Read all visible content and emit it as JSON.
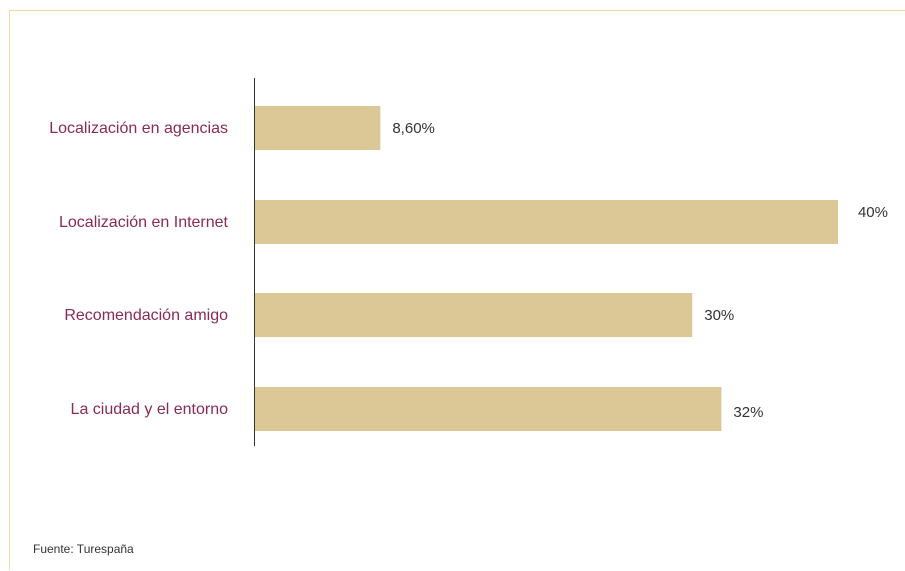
{
  "chart_data": {
    "type": "bar",
    "orientation": "horizontal",
    "categories": [
      "Localización en agencias",
      "Localización en Internet",
      "Recomendación amigo",
      "La ciudad y el entorno"
    ],
    "values": [
      8.6,
      40,
      30,
      32
    ],
    "value_labels": [
      "8,60%",
      "40%",
      "30%",
      "32%"
    ],
    "xlim": [
      0,
      40
    ],
    "grid": false,
    "bar_color": "#dcc896",
    "label_color": "#8b2a55"
  },
  "source": "Fuente: Turespaña",
  "colors": {
    "frame": "#f1d9a6",
    "axis": "#333333"
  }
}
